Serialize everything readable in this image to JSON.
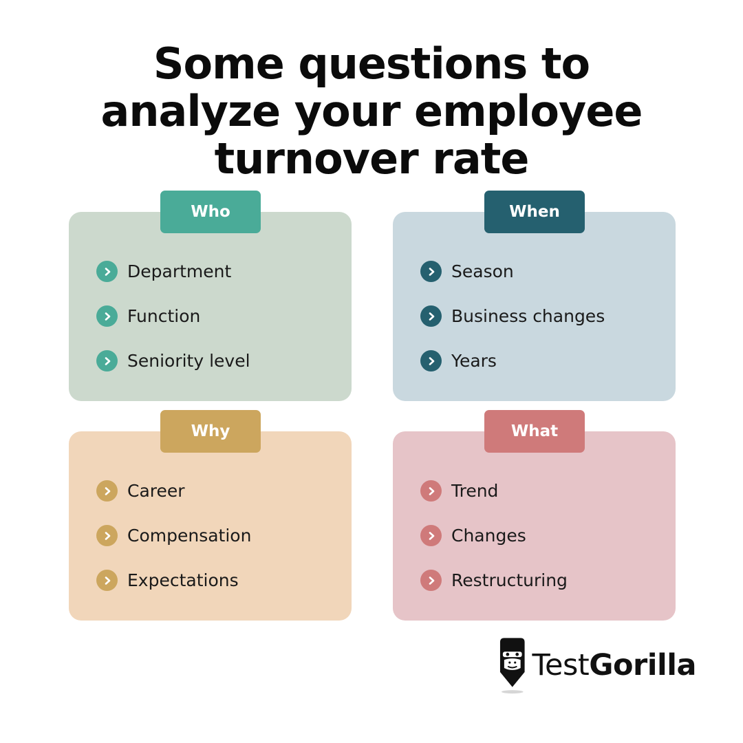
{
  "title": {
    "line1": "Some questions to",
    "line2": "analyze your employee",
    "line3": "turnover rate"
  },
  "cards": [
    {
      "label": "Who",
      "tag_color": "#4aab98",
      "bg_color": "#ccd9cd",
      "items": [
        "Department",
        "Function",
        "Seniority level"
      ]
    },
    {
      "label": "When",
      "tag_color": "#25606f",
      "bg_color": "#c9d8df",
      "items": [
        "Season",
        "Business changes",
        "Years"
      ]
    },
    {
      "label": "Why",
      "tag_color": "#cca65e",
      "bg_color": "#f1d6ba",
      "items": [
        "Career",
        "Compensation",
        "Expectations"
      ]
    },
    {
      "label": "What",
      "tag_color": "#cf7a7a",
      "bg_color": "#e6c4c8",
      "items": [
        "Trend",
        "Changes",
        "Restructuring"
      ]
    }
  ],
  "logo": {
    "icon": "gorilla-icon",
    "word_light": "Test",
    "word_bold": "Gorilla"
  }
}
